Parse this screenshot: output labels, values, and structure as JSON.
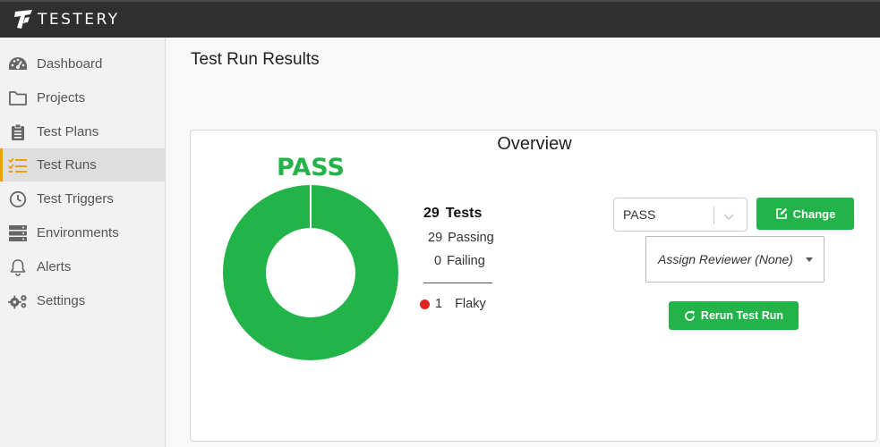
{
  "app": {
    "brand": "TESTERY"
  },
  "sidebar": {
    "items": [
      {
        "label": "Dashboard",
        "icon": "dashboard-gauge-icon",
        "active": false
      },
      {
        "label": "Projects",
        "icon": "folder-icon",
        "active": false
      },
      {
        "label": "Test Plans",
        "icon": "clipboard-icon",
        "active": false
      },
      {
        "label": "Test Runs",
        "icon": "checklist-icon",
        "active": true
      },
      {
        "label": "Test Triggers",
        "icon": "clock-icon",
        "active": false
      },
      {
        "label": "Environments",
        "icon": "server-icon",
        "active": false
      },
      {
        "label": "Alerts",
        "icon": "bell-icon",
        "active": false
      },
      {
        "label": "Settings",
        "icon": "gears-icon",
        "active": false
      }
    ]
  },
  "page": {
    "title": "Test Run Results"
  },
  "overview": {
    "title": "Overview",
    "status": "PASS",
    "donut": {
      "passing": 29,
      "failing": 0,
      "pass_color": "#22b449",
      "fail_color": "#e02424"
    },
    "stats": {
      "total_count": "29",
      "total_label": "Tests",
      "passing_count": "29",
      "passing_label": "Passing",
      "failing_count": "0",
      "failing_label": "Failing",
      "flaky_count": "1",
      "flaky_label": "Flaky"
    },
    "status_select": {
      "value": "PASS"
    },
    "change_button": "Change",
    "reviewer_select": {
      "value": "Assign Reviewer (None)"
    },
    "rerun_button": "Rerun Test Run"
  },
  "colors": {
    "accent_green": "#22b449",
    "active_marker": "#f39c12",
    "topbar": "#2f2f2f",
    "flaky_dot": "#e02424"
  }
}
